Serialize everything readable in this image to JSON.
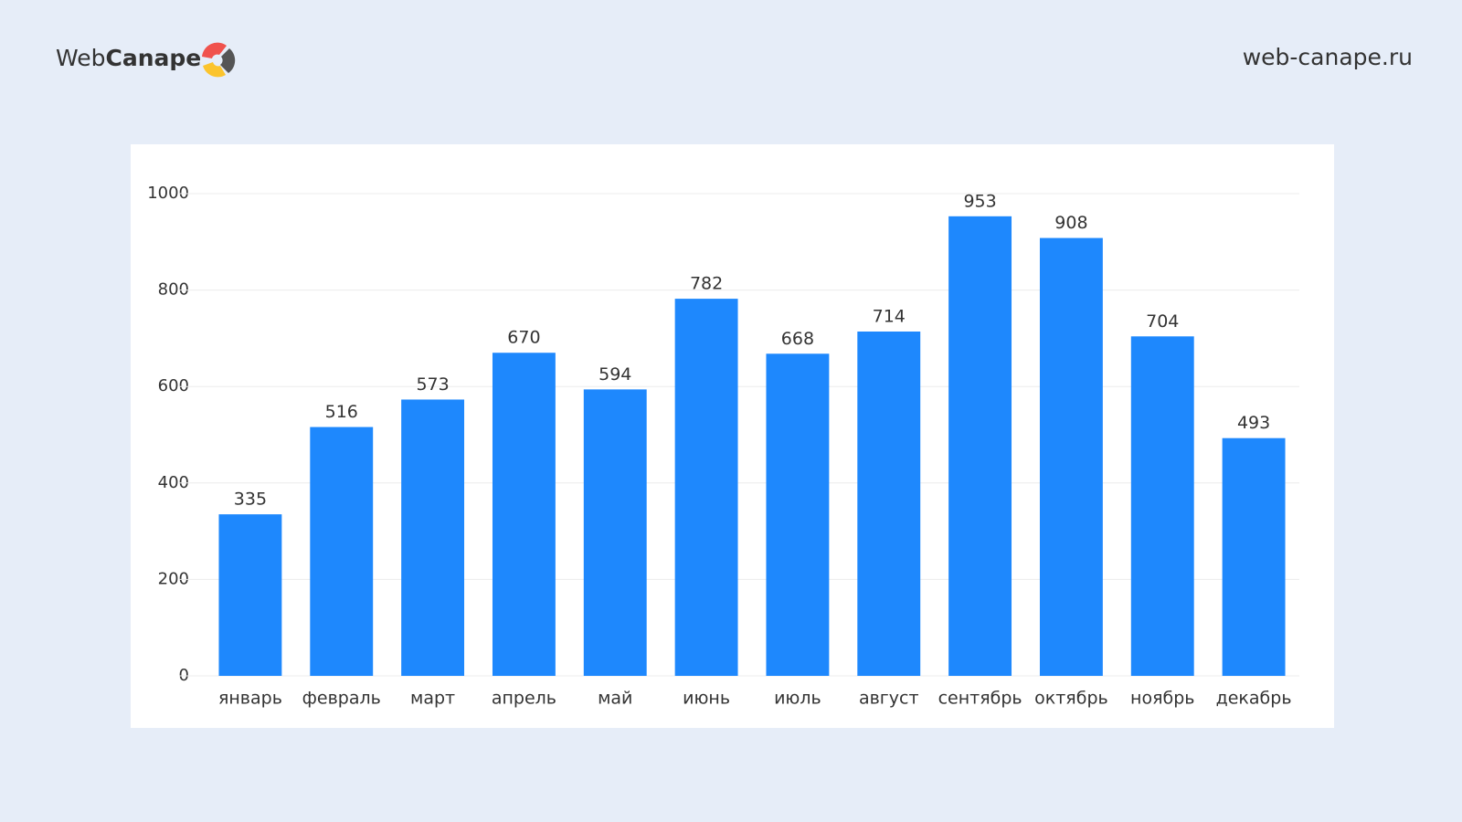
{
  "header": {
    "brand": "Web",
    "brand_bold": "Canape",
    "site": "web-canape.ru"
  },
  "chart_data": {
    "type": "bar",
    "categories": [
      "январь",
      "февраль",
      "март",
      "апрель",
      "май",
      "июнь",
      "июль",
      "август",
      "сентябрь",
      "октябрь",
      "ноябрь",
      "декабрь"
    ],
    "values": [
      335,
      516,
      573,
      670,
      594,
      782,
      668,
      714,
      953,
      908,
      704,
      493
    ],
    "color": "#1e88fd",
    "ylim": [
      0,
      1000
    ],
    "yticks": [
      0,
      200,
      400,
      600,
      800,
      1000
    ],
    "grid": true
  }
}
